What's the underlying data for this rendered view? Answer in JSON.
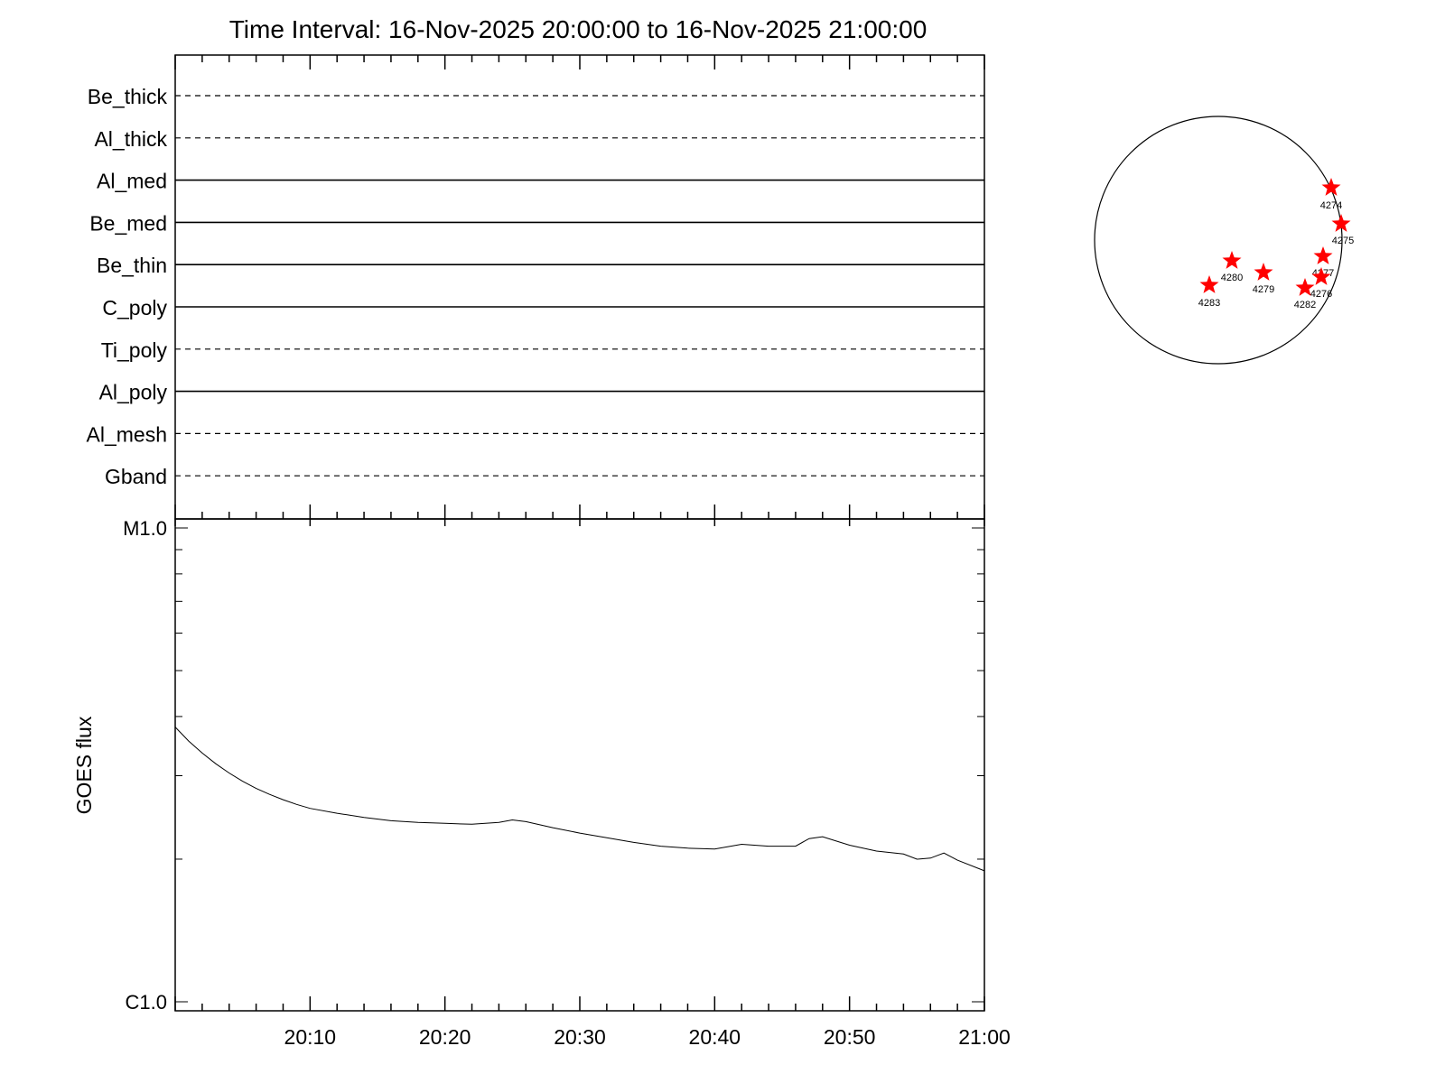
{
  "chart_data": {
    "title": "Time Interval: 16-Nov-2025 20:00:00 to 16-Nov-2025 21:00:00",
    "type": "line",
    "x_range": [
      "20:00",
      "21:00"
    ],
    "x_ticks": [
      "20:10",
      "20:20",
      "20:30",
      "20:40",
      "20:50",
      "21:00"
    ],
    "filter_panel": {
      "rows": [
        {
          "label": "Be_thick",
          "style": "dashed"
        },
        {
          "label": "Al_thick",
          "style": "dashed"
        },
        {
          "label": "Al_med",
          "style": "solid"
        },
        {
          "label": "Be_med",
          "style": "solid"
        },
        {
          "label": "Be_thin",
          "style": "solid"
        },
        {
          "label": "C_poly",
          "style": "solid"
        },
        {
          "label": "Ti_poly",
          "style": "dashed"
        },
        {
          "label": "Al_poly",
          "style": "solid"
        },
        {
          "label": "Al_mesh",
          "style": "dashed"
        },
        {
          "label": "Gband",
          "style": "dashed"
        }
      ]
    },
    "goes_panel": {
      "ylabel": "GOES flux",
      "y_scale": "log",
      "y_tick_labels": [
        "M1.0",
        "C1.0"
      ],
      "ylim": [
        1e-06,
        1e-05
      ],
      "series": [
        {
          "x": [
            0,
            1,
            2,
            3,
            4,
            5,
            6,
            7,
            8,
            9,
            10,
            12,
            14,
            16,
            18,
            20,
            22,
            24,
            25,
            26,
            28,
            30,
            32,
            34,
            36,
            38,
            40,
            42,
            44,
            46,
            47,
            48,
            50,
            52,
            54,
            55,
            56,
            57,
            58,
            60
          ],
          "y": [
            3.8e-06,
            3.55e-06,
            3.35e-06,
            3.18e-06,
            3.04e-06,
            2.92e-06,
            2.82e-06,
            2.74e-06,
            2.67e-06,
            2.61e-06,
            2.56e-06,
            2.5e-06,
            2.45e-06,
            2.41e-06,
            2.39e-06,
            2.38e-06,
            2.37e-06,
            2.39e-06,
            2.42e-06,
            2.4e-06,
            2.33e-06,
            2.27e-06,
            2.22e-06,
            2.17e-06,
            2.13e-06,
            2.11e-06,
            2.1e-06,
            2.15e-06,
            2.13e-06,
            2.13e-06,
            2.21e-06,
            2.23e-06,
            2.14e-06,
            2.08e-06,
            2.05e-06,
            2e-06,
            2.01e-06,
            2.06e-06,
            1.99e-06,
            1.89e-06
          ]
        }
      ]
    },
    "sun_map": {
      "regions": [
        {
          "label": "4274"
        },
        {
          "label": "4275"
        },
        {
          "label": "4277"
        },
        {
          "label": "4280"
        },
        {
          "label": "4279"
        },
        {
          "label": "4276"
        },
        {
          "label": "4282"
        },
        {
          "label": "4283"
        }
      ],
      "marker_color": "#ff0000"
    }
  }
}
